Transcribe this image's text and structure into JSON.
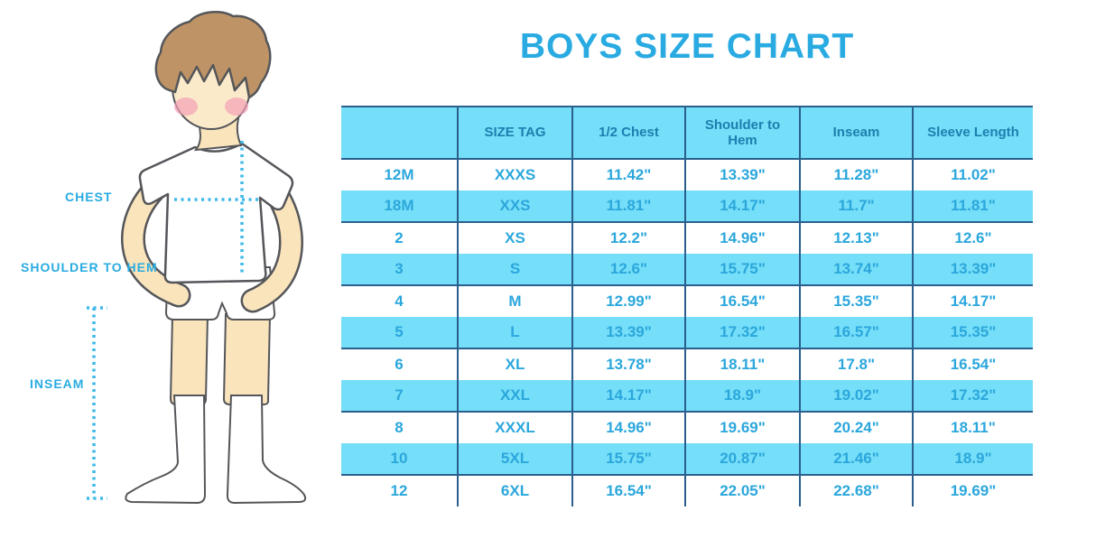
{
  "title": "BOYS SIZE CHART",
  "illustration": {
    "description": "cartoon boy in white t-shirt, shorts and knee socks with dotted measurement guides",
    "chest_label": "CHEST",
    "shoulder_to_hem_label": "SHOULDER TO HEM",
    "inseam_label": "INSEAM"
  },
  "colors": {
    "accent_blue": "#29ABE2",
    "table_fill_blue": "#75DEF8",
    "table_line_blue": "#2A5F8E",
    "header_text_blue": "#1C80B0",
    "cell_text_blue": "#2BA7DC",
    "dotted_guide_blue": "#3FB9E8",
    "outline_gray": "#55565A",
    "hair_brown": "#BE9466",
    "skin": "#F9E4BB",
    "cheek_pink": "#F29FB6"
  },
  "chart_data": {
    "type": "table",
    "title": "BOYS SIZE CHART",
    "columns": [
      "",
      "SIZE TAG",
      "1/2 Chest",
      "Shoulder to Hem",
      "Inseam",
      "Sleeve Length"
    ],
    "rows": [
      [
        "12M",
        "XXXS",
        "11.42\"",
        "13.39\"",
        "11.28\"",
        "11.02\""
      ],
      [
        "18M",
        "XXS",
        "11.81\"",
        "14.17\"",
        "11.7\"",
        "11.81\""
      ],
      [
        "2",
        "XS",
        "12.2\"",
        "14.96\"",
        "12.13\"",
        "12.6\""
      ],
      [
        "3",
        "S",
        "12.6\"",
        "15.75\"",
        "13.74\"",
        "13.39\""
      ],
      [
        "4",
        "M",
        "12.99\"",
        "16.54\"",
        "15.35\"",
        "14.17\""
      ],
      [
        "5",
        "L",
        "13.39\"",
        "17.32\"",
        "16.57\"",
        "15.35\""
      ],
      [
        "6",
        "XL",
        "13.78\"",
        "18.11\"",
        "17.8\"",
        "16.54\""
      ],
      [
        "7",
        "XXL",
        "14.17\"",
        "18.9\"",
        "19.02\"",
        "17.32\""
      ],
      [
        "8",
        "XXXL",
        "14.96\"",
        "19.69\"",
        "20.24\"",
        "18.11\""
      ],
      [
        "10",
        "5XL",
        "15.75\"",
        "20.87\"",
        "21.46\"",
        "18.9\""
      ],
      [
        "12",
        "6XL",
        "16.54\"",
        "22.05\"",
        "22.68\"",
        "19.69\""
      ]
    ],
    "striped_row_indexes": [
      1,
      3,
      5,
      7,
      9
    ],
    "layout": {
      "grid": "vertical column separators only, no outer side borders",
      "stripes": "header and alternating rows filled light blue, stripe rows have dark bottom rule",
      "units": "inches"
    }
  }
}
